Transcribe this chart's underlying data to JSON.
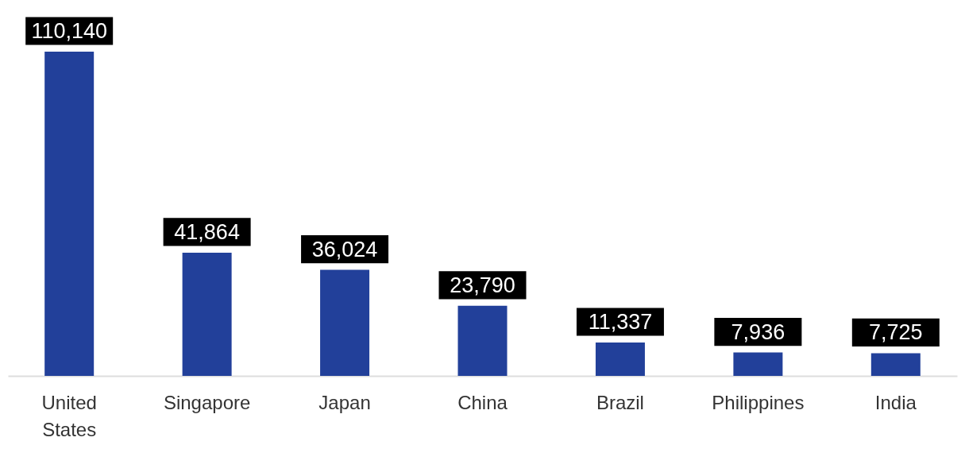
{
  "chart_data": {
    "type": "bar",
    "categories": [
      "United States",
      "Singapore",
      "Japan",
      "China",
      "Brazil",
      "Philippines",
      "India"
    ],
    "values": [
      110140,
      41864,
      36024,
      23790,
      11337,
      7936,
      7725
    ],
    "color": "#22409a",
    "value_labels": [
      "110,140",
      "41,864",
      "36,024",
      "23,790",
      "11,337",
      "7,936",
      "7,725"
    ]
  }
}
